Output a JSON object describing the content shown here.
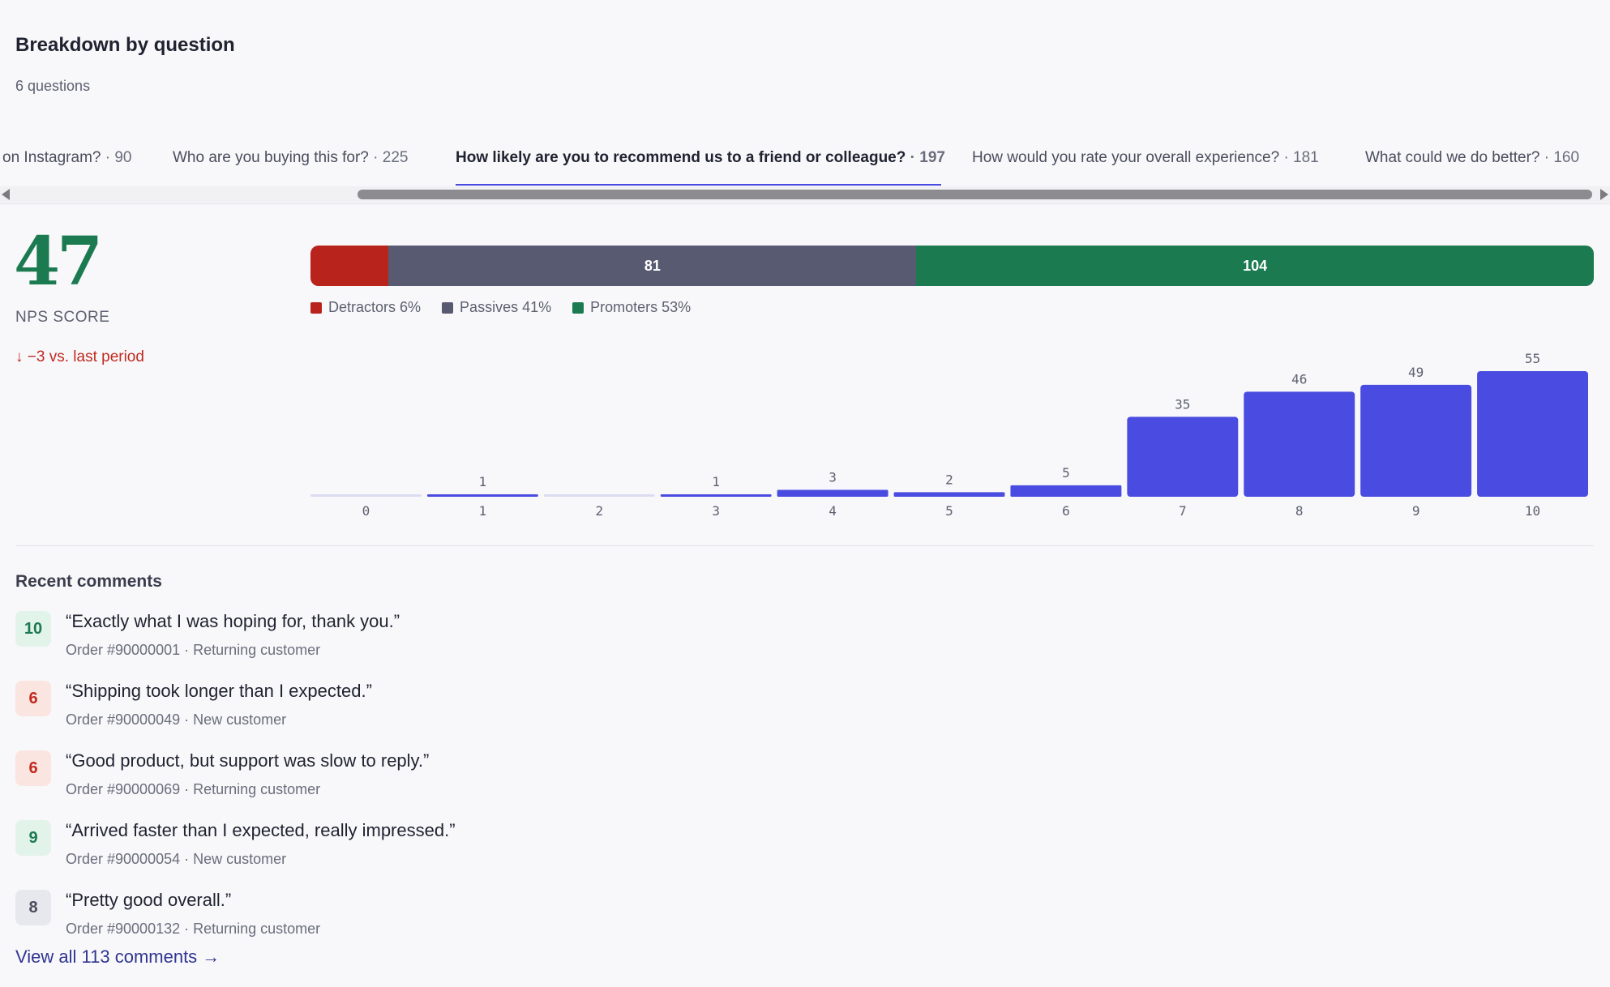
{
  "section": {
    "title": "Breakdown by question",
    "subtitle": "6 questions"
  },
  "tabs": [
    {
      "label": "on Instagram?",
      "count": "· 90",
      "active": false
    },
    {
      "label": "Who are you buying this for?",
      "count": "· 225",
      "active": false
    },
    {
      "label": "How likely are you to recommend us to a friend or colleague?",
      "count": "· 197",
      "active": true
    },
    {
      "label": "How would you rate your overall experience?",
      "count": "· 181",
      "active": false
    },
    {
      "label": "What could we do better?",
      "count": "· 160",
      "active": false
    }
  ],
  "nps": {
    "score": "47",
    "label": "NPS SCORE",
    "change": "↓ −3 vs. last period",
    "change_color": "#c02a20"
  },
  "breakdown": {
    "segments": [
      {
        "name": "Detractors",
        "count": 12,
        "label": "",
        "color": "#b8231b"
      },
      {
        "name": "Passives",
        "count": 81,
        "label": "81",
        "color": "#585a72"
      },
      {
        "name": "Promoters",
        "count": 104,
        "label": "104",
        "color": "#1b7a50"
      }
    ],
    "legend": [
      {
        "label": "Detractors 6%",
        "color": "#b8231b"
      },
      {
        "label": "Passives 41%",
        "color": "#585a72"
      },
      {
        "label": "Promoters 53%",
        "color": "#1b7a50"
      }
    ]
  },
  "chart_data": {
    "type": "bar",
    "categories": [
      "0",
      "1",
      "2",
      "3",
      "4",
      "5",
      "6",
      "7",
      "8",
      "9",
      "10"
    ],
    "values": [
      0,
      1,
      0,
      1,
      3,
      2,
      5,
      35,
      46,
      49,
      55
    ],
    "value_labels": [
      "",
      "1",
      "",
      "1",
      "3",
      "2",
      "5",
      "35",
      "46",
      "49",
      "55"
    ],
    "color": "#4a4be0",
    "empty_color": "#dcdcf0",
    "ylim": [
      0,
      55
    ]
  },
  "comments": {
    "title": "Recent comments",
    "items": [
      {
        "score": "10",
        "kind": "promoter",
        "text": "“Exactly what I was hoping for, thank you.”",
        "meta": "Order #90000001 · Returning customer"
      },
      {
        "score": "6",
        "kind": "detractor",
        "text": "“Shipping took longer than I expected.”",
        "meta": "Order #90000049 · New customer"
      },
      {
        "score": "6",
        "kind": "detractor",
        "text": "“Good product, but support was slow to reply.”",
        "meta": "Order #90000069 · Returning customer"
      },
      {
        "score": "9",
        "kind": "promoter",
        "text": "“Arrived faster than I expected, really impressed.”",
        "meta": "Order #90000054 · New customer"
      },
      {
        "score": "8",
        "kind": "passive",
        "text": "“Pretty good overall.”",
        "meta": "Order #90000132 · Returning customer"
      }
    ],
    "view_all": "View all 113 comments →"
  }
}
